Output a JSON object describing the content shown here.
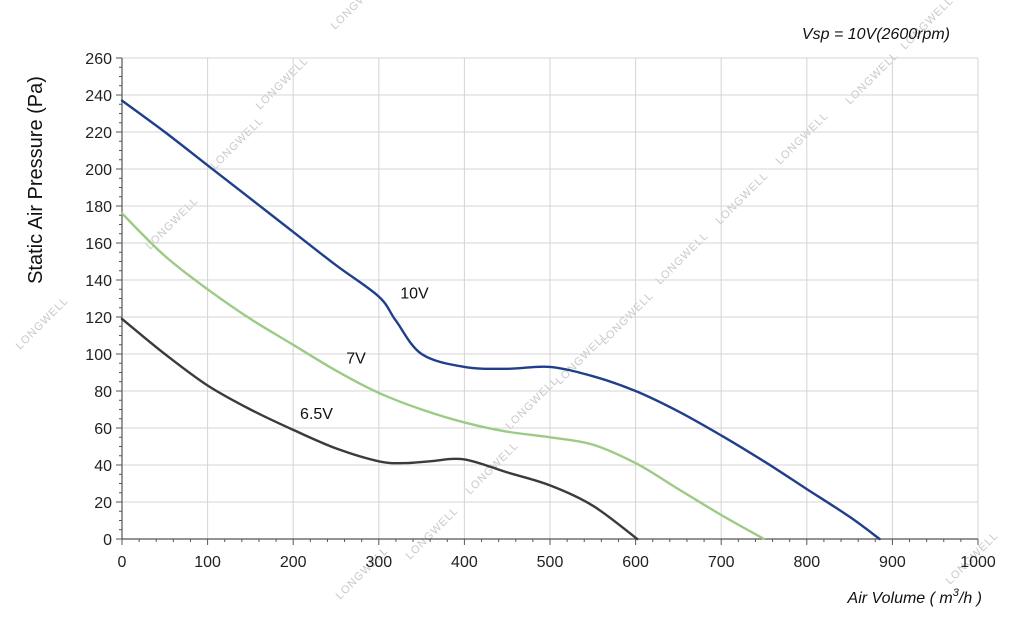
{
  "chart_data": {
    "type": "line",
    "title": "",
    "annotation": "Vsp = 10V(2600rpm)",
    "xlabel_main": "Air Volume ( m",
    "xlabel_sup": "3",
    "xlabel_tail": "/h )",
    "ylabel": "Static Air Pressure  (Pa)",
    "xlim": [
      0,
      1000
    ],
    "ylim": [
      0,
      260
    ],
    "xticks": [
      0,
      100,
      200,
      300,
      400,
      500,
      600,
      700,
      800,
      900,
      1000
    ],
    "yticks": [
      0,
      20,
      40,
      60,
      80,
      100,
      120,
      140,
      160,
      180,
      200,
      220,
      240,
      260
    ],
    "grid": true,
    "watermark": "LONGWELL",
    "series": [
      {
        "name": "10V",
        "color": "#1f3f8c",
        "x": [
          0,
          50,
          100,
          150,
          200,
          250,
          300,
          320,
          350,
          400,
          450,
          500,
          550,
          600,
          650,
          700,
          750,
          800,
          850,
          885
        ],
        "y": [
          237,
          220,
          202,
          184,
          166,
          148,
          131,
          118,
          100,
          93,
          92,
          93,
          88,
          80,
          69,
          56,
          42,
          27,
          12,
          0
        ]
      },
      {
        "name": "7V",
        "color": "#9ccb86",
        "x": [
          0,
          50,
          100,
          150,
          200,
          250,
          300,
          350,
          400,
          450,
          500,
          550,
          600,
          650,
          700,
          750
        ],
        "y": [
          176,
          153,
          135,
          119,
          105,
          91,
          79,
          70,
          63,
          58,
          55,
          51,
          41,
          27,
          13,
          0
        ]
      },
      {
        "name": "6.5V",
        "color": "#3b3b3b",
        "x": [
          0,
          50,
          100,
          150,
          200,
          250,
          300,
          330,
          360,
          400,
          450,
          500,
          550,
          602
        ],
        "y": [
          119,
          100,
          83,
          70,
          59,
          49,
          42,
          41,
          42,
          43,
          36,
          29,
          18,
          0
        ]
      }
    ],
    "series_label_points": [
      {
        "name": "10V",
        "x": 325,
        "y": 130
      },
      {
        "name": "7V",
        "x": 262,
        "y": 95
      },
      {
        "name": "6.5V",
        "x": 208,
        "y": 65
      }
    ]
  }
}
